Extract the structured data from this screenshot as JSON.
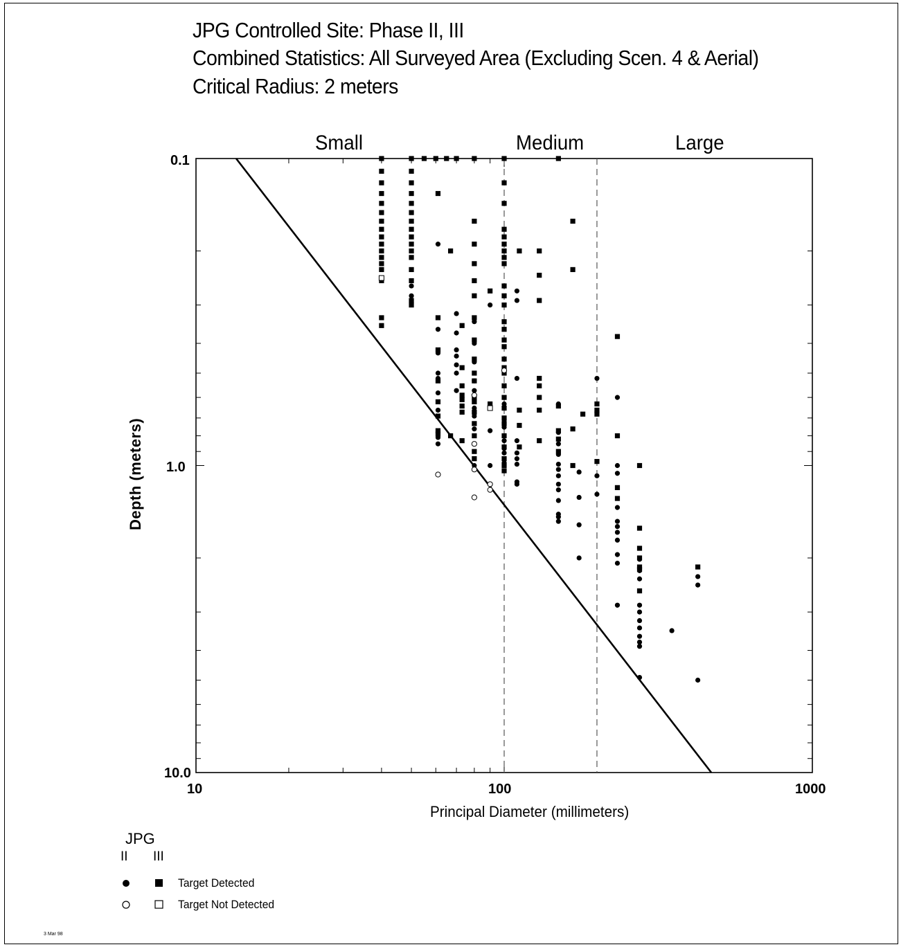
{
  "chart_data": {
    "type": "scatter",
    "title_lines": [
      "JPG Controlled Site:  Phase II, III",
      "Combined Statistics:  All Surveyed Area (Excluding Scen. 4 & Aerial)",
      "Critical Radius:  2 meters"
    ],
    "xlabel": "Principal Diameter (millimeters)",
    "ylabel": "Depth (meters)",
    "x_scale": "log",
    "y_scale": "log",
    "y_inverted": true,
    "xlim": [
      10,
      1000
    ],
    "ylim": [
      0.1,
      10.0
    ],
    "x_tick_labels": [
      "10",
      "100",
      "1000"
    ],
    "y_tick_labels": [
      "0.1",
      "1.0",
      "10.0"
    ],
    "regions": [
      "Small",
      "Medium",
      "Large"
    ],
    "region_boundaries_mm": [
      100,
      200
    ],
    "critical_line": [
      [
        13.5,
        0.1
      ],
      [
        470,
        10.0
      ]
    ],
    "legend": {
      "title": "JPG",
      "phase_ii": "II",
      "phase_iii": "III",
      "detected": "Target Detected",
      "not_detected": "Target Not Detected"
    },
    "series": [
      {
        "name": "Phase III Target Detected",
        "marker": "square-filled",
        "points": [
          [
            40,
            0.1
          ],
          [
            40,
            0.11
          ],
          [
            40,
            0.12
          ],
          [
            40,
            0.13
          ],
          [
            40,
            0.14
          ],
          [
            40,
            0.15
          ],
          [
            40,
            0.16
          ],
          [
            40,
            0.17
          ],
          [
            40,
            0.18
          ],
          [
            40,
            0.19
          ],
          [
            40,
            0.2
          ],
          [
            40,
            0.21
          ],
          [
            40,
            0.22
          ],
          [
            40,
            0.23
          ],
          [
            40,
            0.25
          ],
          [
            40,
            0.33
          ],
          [
            40,
            0.35
          ],
          [
            50,
            0.1
          ],
          [
            50,
            0.11
          ],
          [
            50,
            0.12
          ],
          [
            50,
            0.13
          ],
          [
            50,
            0.14
          ],
          [
            50,
            0.15
          ],
          [
            50,
            0.16
          ],
          [
            50,
            0.17
          ],
          [
            50,
            0.18
          ],
          [
            50,
            0.19
          ],
          [
            50,
            0.2
          ],
          [
            50,
            0.21
          ],
          [
            50,
            0.23
          ],
          [
            50,
            0.25
          ],
          [
            50,
            0.29
          ],
          [
            50,
            0.3
          ],
          [
            55,
            0.1
          ],
          [
            60,
            0.1
          ],
          [
            65,
            0.1
          ],
          [
            70,
            0.1
          ],
          [
            80,
            0.1
          ],
          [
            61,
            0.13
          ],
          [
            61,
            0.33
          ],
          [
            61,
            0.42
          ],
          [
            61,
            0.53
          ],
          [
            61,
            0.62
          ],
          [
            61,
            0.69
          ],
          [
            61,
            0.77
          ],
          [
            61,
            0.79
          ],
          [
            67,
            0.2
          ],
          [
            67,
            0.8
          ],
          [
            73,
            0.35
          ],
          [
            73,
            0.48
          ],
          [
            73,
            0.55
          ],
          [
            73,
            0.59
          ],
          [
            73,
            0.61
          ],
          [
            73,
            0.64
          ],
          [
            73,
            0.67
          ],
          [
            73,
            0.83
          ],
          [
            80,
            0.16
          ],
          [
            80,
            0.19
          ],
          [
            80,
            0.22
          ],
          [
            80,
            0.25
          ],
          [
            80,
            0.28
          ],
          [
            80,
            0.33
          ],
          [
            80,
            0.39
          ],
          [
            80,
            0.45
          ],
          [
            80,
            0.5
          ],
          [
            80,
            0.53
          ],
          [
            80,
            0.6
          ],
          [
            80,
            0.62
          ],
          [
            80,
            0.67
          ],
          [
            80,
            0.73
          ],
          [
            80,
            0.8
          ],
          [
            80,
            0.9
          ],
          [
            80,
            0.95
          ],
          [
            90,
            0.27
          ],
          [
            90,
            0.63
          ],
          [
            100,
            0.1
          ],
          [
            100,
            0.12
          ],
          [
            100,
            0.14
          ],
          [
            100,
            0.17
          ],
          [
            100,
            0.18
          ],
          [
            100,
            0.19
          ],
          [
            100,
            0.2
          ],
          [
            100,
            0.21
          ],
          [
            100,
            0.22
          ],
          [
            100,
            0.26
          ],
          [
            100,
            0.28
          ],
          [
            100,
            0.3
          ],
          [
            100,
            0.34
          ],
          [
            100,
            0.36
          ],
          [
            100,
            0.39
          ],
          [
            100,
            0.41
          ],
          [
            100,
            0.45
          ],
          [
            100,
            0.48
          ],
          [
            100,
            0.5
          ],
          [
            100,
            0.55
          ],
          [
            100,
            0.6
          ],
          [
            100,
            0.65
          ],
          [
            100,
            0.7
          ],
          [
            100,
            0.73
          ],
          [
            100,
            0.8
          ],
          [
            100,
            0.87
          ],
          [
            100,
            0.95
          ],
          [
            100,
            1.0
          ],
          [
            100,
            1.04
          ],
          [
            112,
            0.2
          ],
          [
            112,
            0.66
          ],
          [
            112,
            0.74
          ],
          [
            112,
            0.87
          ],
          [
            130,
            0.2
          ],
          [
            130,
            0.24
          ],
          [
            130,
            0.29
          ],
          [
            130,
            0.52
          ],
          [
            130,
            0.55
          ],
          [
            130,
            0.6
          ],
          [
            130,
            0.66
          ],
          [
            130,
            0.83
          ],
          [
            150,
            0.1
          ],
          [
            150,
            0.64
          ],
          [
            150,
            0.77
          ],
          [
            150,
            0.82
          ],
          [
            150,
            0.9
          ],
          [
            167,
            0.16
          ],
          [
            167,
            0.23
          ],
          [
            167,
            0.76
          ],
          [
            167,
            1.0
          ],
          [
            180,
            0.68
          ],
          [
            200,
            0.63
          ],
          [
            200,
            0.66
          ],
          [
            200,
            0.68
          ],
          [
            200,
            0.97
          ],
          [
            233,
            0.38
          ],
          [
            233,
            0.8
          ],
          [
            233,
            1.18
          ],
          [
            233,
            1.28
          ],
          [
            275,
            1.0
          ],
          [
            275,
            1.6
          ],
          [
            275,
            1.86
          ],
          [
            275,
            2.0
          ],
          [
            275,
            2.14
          ],
          [
            275,
            2.18
          ],
          [
            275,
            2.56
          ],
          [
            425,
            2.14
          ]
        ]
      },
      {
        "name": "Phase II Target Detected",
        "marker": "circle-filled",
        "points": [
          [
            40,
            0.16
          ],
          [
            40,
            0.2
          ],
          [
            40,
            0.23
          ],
          [
            50,
            0.26
          ],
          [
            50,
            0.28
          ],
          [
            61,
            0.19
          ],
          [
            61,
            0.36
          ],
          [
            61,
            0.43
          ],
          [
            61,
            0.5
          ],
          [
            61,
            0.52
          ],
          [
            61,
            0.58
          ],
          [
            61,
            0.66
          ],
          [
            61,
            0.81
          ],
          [
            61,
            0.85
          ],
          [
            70,
            0.32
          ],
          [
            70,
            0.37
          ],
          [
            70,
            0.42
          ],
          [
            70,
            0.44
          ],
          [
            70,
            0.47
          ],
          [
            70,
            0.5
          ],
          [
            70,
            0.57
          ],
          [
            80,
            0.34
          ],
          [
            80,
            0.4
          ],
          [
            80,
            0.46
          ],
          [
            80,
            0.53
          ],
          [
            80,
            0.57
          ],
          [
            80,
            0.65
          ],
          [
            80,
            0.69
          ],
          [
            80,
            0.76
          ],
          [
            80,
            0.85
          ],
          [
            80,
            1.0
          ],
          [
            90,
            0.3
          ],
          [
            90,
            0.77
          ],
          [
            90,
            1.0
          ],
          [
            100,
            0.5
          ],
          [
            100,
            0.63
          ],
          [
            100,
            0.71
          ],
          [
            100,
            0.75
          ],
          [
            100,
            0.83
          ],
          [
            100,
            0.88
          ],
          [
            100,
            0.91
          ],
          [
            100,
            0.98
          ],
          [
            110,
            0.27
          ],
          [
            110,
            0.29
          ],
          [
            110,
            0.52
          ],
          [
            110,
            0.83
          ],
          [
            110,
            0.91
          ],
          [
            110,
            0.95
          ],
          [
            110,
            0.99
          ],
          [
            110,
            1.13
          ],
          [
            110,
            1.15
          ],
          [
            150,
            0.63
          ],
          [
            150,
            0.78
          ],
          [
            150,
            0.85
          ],
          [
            150,
            0.92
          ],
          [
            150,
            0.99
          ],
          [
            150,
            1.03
          ],
          [
            150,
            1.08
          ],
          [
            150,
            1.15
          ],
          [
            150,
            1.2
          ],
          [
            150,
            1.3
          ],
          [
            150,
            1.44
          ],
          [
            150,
            1.47
          ],
          [
            150,
            1.52
          ],
          [
            175,
            1.05
          ],
          [
            175,
            1.27
          ],
          [
            175,
            1.56
          ],
          [
            175,
            2.0
          ],
          [
            200,
            0.52
          ],
          [
            200,
            1.08
          ],
          [
            200,
            1.24
          ],
          [
            233,
            0.6
          ],
          [
            233,
            1.0
          ],
          [
            233,
            1.06
          ],
          [
            233,
            1.37
          ],
          [
            233,
            1.52
          ],
          [
            233,
            1.58
          ],
          [
            233,
            1.65
          ],
          [
            233,
            1.75
          ],
          [
            233,
            1.95
          ],
          [
            233,
            2.08
          ],
          [
            233,
            2.85
          ],
          [
            275,
            2.02
          ],
          [
            275,
            2.2
          ],
          [
            275,
            2.34
          ],
          [
            275,
            2.56
          ],
          [
            275,
            2.85
          ],
          [
            275,
            3.0
          ],
          [
            275,
            3.2
          ],
          [
            275,
            3.38
          ],
          [
            275,
            3.6
          ],
          [
            275,
            3.76
          ],
          [
            275,
            3.88
          ],
          [
            275,
            4.9
          ],
          [
            350,
            3.45
          ],
          [
            425,
            2.3
          ],
          [
            425,
            2.45
          ],
          [
            425,
            5.0
          ]
        ]
      },
      {
        "name": "Phase III Target Not Detected",
        "marker": "square-open",
        "points": [
          [
            40,
            0.245
          ],
          [
            90,
            0.65
          ]
        ]
      },
      {
        "name": "Phase II Target Not Detected",
        "marker": "circle-open",
        "points": [
          [
            61,
            1.07
          ],
          [
            80,
            0.59
          ],
          [
            80,
            0.85
          ],
          [
            80,
            1.03
          ],
          [
            80,
            1.27
          ],
          [
            90,
            1.2
          ],
          [
            90,
            1.15
          ],
          [
            100,
            0.49
          ]
        ]
      }
    ]
  }
}
